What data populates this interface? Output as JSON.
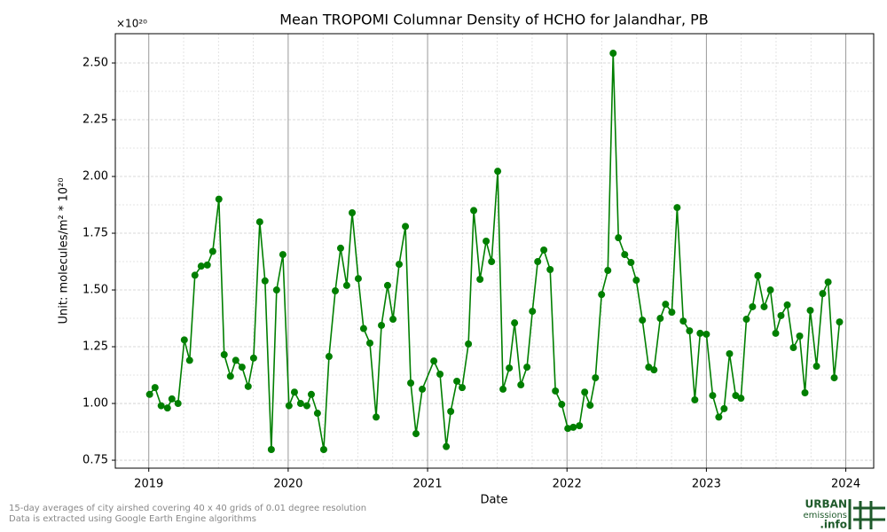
{
  "chart_data": {
    "type": "line",
    "title": "Mean TROPOMI Columnar Density of HCHO for Jalandhar, PB",
    "x_label": "Date",
    "y_label": "Unit: molecules/m² * 10²⁰",
    "offset_text": "×10²⁰",
    "x": [
      2019.006,
      2019.045,
      2019.089,
      2019.134,
      2019.166,
      2019.21,
      2019.255,
      2019.293,
      2019.331,
      2019.376,
      2019.42,
      2019.459,
      2019.503,
      2019.541,
      2019.586,
      2019.624,
      2019.669,
      2019.713,
      2019.752,
      2019.796,
      2019.834,
      2019.879,
      2019.917,
      2019.962,
      2020.006,
      2020.045,
      2020.089,
      2020.134,
      2020.166,
      2020.21,
      2020.255,
      2020.293,
      2020.338,
      2020.376,
      2020.42,
      2020.459,
      2020.503,
      2020.541,
      2020.586,
      2020.631,
      2020.669,
      2020.713,
      2020.752,
      2020.796,
      2020.841,
      2020.879,
      2020.917,
      2020.962,
      2021.045,
      2021.089,
      2021.134,
      2021.166,
      2021.21,
      2021.248,
      2021.293,
      2021.331,
      2021.376,
      2021.42,
      2021.459,
      2021.503,
      2021.541,
      2021.586,
      2021.624,
      2021.669,
      2021.713,
      2021.752,
      2021.79,
      2021.834,
      2021.879,
      2021.917,
      2021.962,
      2022.006,
      2022.045,
      2022.089,
      2022.127,
      2022.166,
      2022.204,
      2022.248,
      2022.293,
      2022.331,
      2022.369,
      2022.414,
      2022.459,
      2022.497,
      2022.541,
      2022.586,
      2022.624,
      2022.669,
      2022.707,
      2022.752,
      2022.79,
      2022.834,
      2022.879,
      2022.917,
      2022.955,
      2023.0,
      2023.045,
      2023.089,
      2023.127,
      2023.166,
      2023.21,
      2023.248,
      2023.287,
      2023.331,
      2023.369,
      2023.414,
      2023.459,
      2023.497,
      2023.535,
      2023.58,
      2023.624,
      2023.669,
      2023.707,
      2023.745,
      2023.79,
      2023.834,
      2023.873,
      2023.917,
      2023.955
    ],
    "series": [
      {
        "color": "#007f00",
        "values": [
          1.04,
          1.07,
          0.99,
          0.98,
          1.02,
          1.0,
          1.28,
          1.19,
          1.565,
          1.605,
          1.61,
          1.67,
          1.9,
          1.215,
          1.12,
          1.19,
          1.16,
          1.075,
          1.2,
          1.8,
          1.54,
          0.797,
          1.5,
          1.656,
          0.99,
          1.05,
          1.0,
          0.99,
          1.04,
          0.957,
          0.797,
          1.207,
          1.496,
          1.684,
          1.52,
          1.84,
          1.55,
          1.33,
          1.266,
          0.94,
          1.344,
          1.52,
          1.371,
          1.613,
          1.78,
          1.09,
          0.867,
          1.063,
          1.187,
          1.129,
          0.81,
          0.965,
          1.098,
          1.07,
          1.262,
          1.85,
          1.547,
          1.715,
          1.625,
          2.023,
          1.063,
          1.156,
          1.355,
          1.082,
          1.16,
          1.406,
          1.625,
          1.676,
          1.59,
          1.055,
          0.996,
          0.89,
          0.895,
          0.902,
          1.05,
          0.992,
          1.113,
          1.48,
          1.586,
          2.543,
          1.73,
          1.656,
          1.621,
          1.543,
          1.367,
          1.16,
          1.148,
          1.375,
          1.437,
          1.402,
          1.863,
          1.363,
          1.32,
          1.016,
          1.309,
          1.305,
          1.035,
          0.94,
          0.977,
          1.219,
          1.035,
          1.023,
          1.371,
          1.426,
          1.563,
          1.426,
          1.5,
          1.309,
          1.387,
          1.434,
          1.246,
          1.297,
          1.047,
          1.41,
          1.164,
          1.484,
          1.535,
          1.113,
          1.359
        ]
      }
    ],
    "xlim": [
      2018.76,
      2024.2
    ],
    "xticks": [
      2019,
      2020,
      2021,
      2022,
      2023,
      2024
    ],
    "ylim": [
      0.715,
      2.629
    ],
    "yticks": [
      0.75,
      {
        "value": 1,
        "label": "1.00"
      },
      1.25,
      {
        "value": 1.5,
        "label": "1.50"
      },
      1.75,
      {
        "value": 2,
        "label": "2.00"
      },
      2.25,
      {
        "value": 2.5,
        "label": "2.50"
      }
    ],
    "grid": true
  },
  "footnote": [
    "15-day averages of city airshed covering 40 x 40 grids of 0.01 degree resolution",
    "Data is extracted using Google Earth Engine algorithms"
  ],
  "logo": {
    "line1": "URBAN",
    "line2": "emissions",
    "line3": ".info"
  }
}
